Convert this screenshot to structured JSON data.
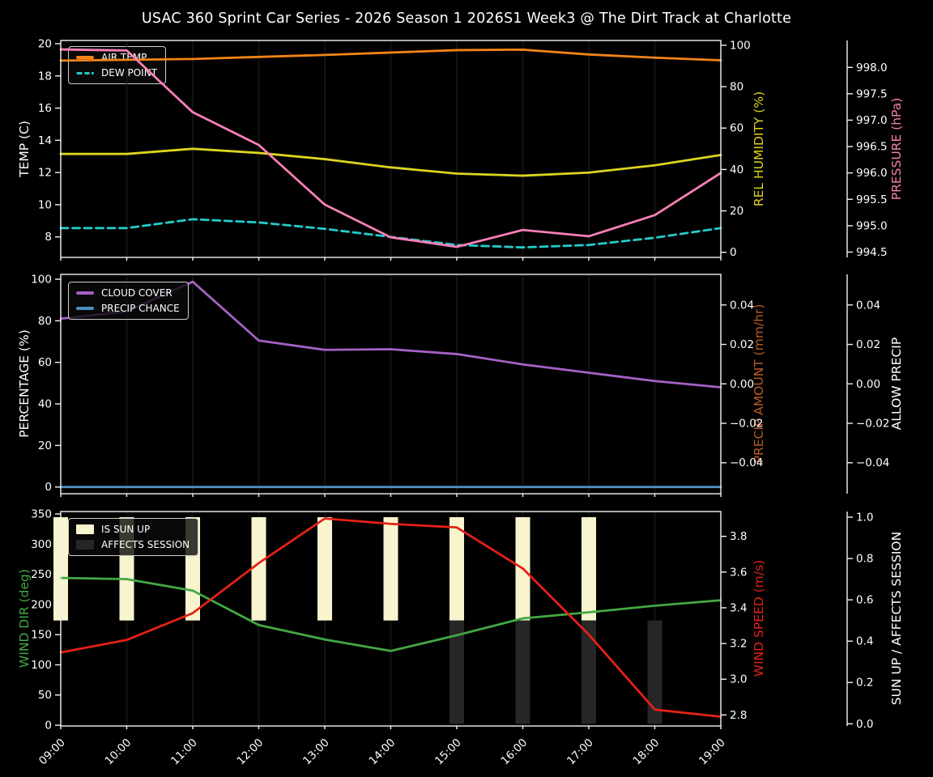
{
  "title": "USAC 360 Sprint Car Series - 2026 Season 1 2026S1 Week3 @ The Dirt Track at Charlotte",
  "colors": {
    "background": "#000000",
    "text": "#ffffff",
    "grid": "#1a1a1a",
    "spine": "#f2f2f2",
    "legend_border": "#cfcfcf"
  },
  "x_categories": [
    "09:00",
    "10:00",
    "11:00",
    "12:00",
    "13:00",
    "14:00",
    "15:00",
    "16:00",
    "17:00",
    "18:00",
    "19:00"
  ],
  "chart_data": [
    {
      "id": "temp-panel",
      "type": "line",
      "axes": {
        "left": {
          "label": "TEMP (C)",
          "color": "#ffffff",
          "ylim": [
            6.73,
            20.2
          ],
          "ticks": [
            8,
            10,
            12,
            14,
            16,
            18,
            20
          ],
          "tick_labels": [
            "8",
            "10",
            "12",
            "14",
            "16",
            "18",
            "20"
          ]
        },
        "right1": {
          "label": "REL HUMIDITY (%)",
          "color": "#ddd41f",
          "ylim": [
            -2.46,
            102.31
          ],
          "ticks": [
            0,
            20,
            40,
            60,
            80,
            100
          ],
          "tick_labels": [
            "0",
            "20",
            "40",
            "60",
            "80",
            "100"
          ]
        },
        "right2": {
          "label": "PRESSURE (hPa)",
          "color": "#f77fb7",
          "ylim": [
            994.4,
            998.51
          ],
          "ticks": [
            994.5,
            995.0,
            995.5,
            996.0,
            996.5,
            997.0,
            997.5,
            998.0
          ],
          "tick_labels": [
            "994.5",
            "995.0",
            "995.5",
            "996.0",
            "996.5",
            "997.0",
            "997.5",
            "998.0"
          ]
        }
      },
      "series": [
        {
          "name": "AIR TEMP",
          "color": "#f28418",
          "axis": "left",
          "style": "line",
          "values": [
            18.95,
            19.0,
            19.05,
            19.18,
            19.3,
            19.45,
            19.6,
            19.63,
            19.33,
            19.13,
            18.97
          ]
        },
        {
          "name": "DEW POINT",
          "color": "#24cbcb",
          "axis": "left",
          "style": "dashed",
          "values": [
            8.55,
            8.55,
            9.1,
            8.9,
            8.5,
            8.0,
            7.5,
            7.35,
            7.5,
            7.95,
            8.55
          ]
        },
        {
          "name": "REL HUMIDITY",
          "color": "#ddd41f",
          "axis": "right1",
          "style": "line",
          "values": [
            47.5,
            47.5,
            50,
            48,
            45,
            41,
            38,
            37,
            38.5,
            42,
            47
          ]
        },
        {
          "name": "PRESSURE",
          "color": "#f77fb7",
          "axis": "right2",
          "style": "line",
          "values": [
            998.34,
            998.32,
            997.15,
            996.53,
            995.4,
            994.78,
            994.6,
            994.92,
            994.8,
            995.2,
            996.0
          ]
        }
      ],
      "legend_entries": [
        0,
        1
      ]
    },
    {
      "id": "precip-panel",
      "type": "line",
      "axes": {
        "left": {
          "label": "PERCENTAGE (%)",
          "color": "#ffffff",
          "ylim": [
            -3.23,
            102.34
          ],
          "ticks": [
            0,
            20,
            40,
            60,
            80,
            100
          ],
          "tick_labels": [
            "0",
            "20",
            "40",
            "60",
            "80",
            "100"
          ]
        },
        "right1": {
          "label": "PRECIP AMOUNT (mm/hr)",
          "color": "#b85c28",
          "ylim": [
            -0.0557,
            0.0555
          ],
          "ticks": [
            -0.04,
            -0.02,
            0,
            0.02,
            0.04
          ],
          "tick_labels": [
            "−0.04",
            "−0.02",
            "0.00",
            "0.02",
            "0.04"
          ]
        },
        "right2": {
          "label": "ALLOW PRECIP",
          "color": "#ffffff",
          "ylim": [
            -0.0557,
            0.0555
          ],
          "ticks": [
            -0.04,
            -0.02,
            0,
            0.02,
            0.04
          ],
          "tick_labels": [
            "−0.04",
            "−0.02",
            "0.00",
            "0.02",
            "0.04"
          ]
        }
      },
      "series": [
        {
          "name": "CLOUD COVER",
          "color": "#a661c4",
          "axis": "left",
          "style": "line",
          "values": [
            81,
            84.5,
            98.8,
            70.5,
            66,
            66.3,
            64,
            59,
            55,
            51,
            48
          ]
        },
        {
          "name": "PRECIP CHANCE",
          "color": "#4a8fc2",
          "axis": "left",
          "style": "line",
          "values": [
            0,
            0,
            0,
            0,
            0,
            0,
            0,
            0,
            0,
            0,
            0
          ]
        }
      ],
      "legend_entries": [
        0,
        1
      ]
    },
    {
      "id": "wind-panel",
      "type": "line",
      "axes": {
        "left": {
          "label": "WIND DIR (deg)",
          "color": "#43a843",
          "ylim": [
            -1.34,
            354.0
          ],
          "ticks": [
            0,
            50,
            100,
            150,
            200,
            250,
            300,
            350
          ],
          "tick_labels": [
            "0",
            "50",
            "100",
            "150",
            "200",
            "250",
            "300",
            "350"
          ]
        },
        "right1": {
          "label": "WIND SPEED (m/s)",
          "color": "#e42117",
          "ylim": [
            2.738,
            3.939
          ],
          "ticks": [
            2.8,
            3.0,
            3.2,
            3.4,
            3.6,
            3.8
          ],
          "tick_labels": [
            "2.8",
            "3.0",
            "3.2",
            "3.4",
            "3.6",
            "3.8"
          ]
        },
        "right2": {
          "label": "SUN UP / AFFECTS SESSION",
          "color": "#ffffff",
          "ylim": [
            -0.0106,
            1.0274
          ],
          "ticks": [
            0.0,
            0.2,
            0.4,
            0.6,
            0.8,
            1.0
          ],
          "tick_labels": [
            "0.0",
            "0.2",
            "0.4",
            "0.6",
            "0.8",
            "1.0"
          ]
        }
      },
      "series": [
        {
          "name": "IS SUN UP",
          "color": "#f7f4ce",
          "axis": "right2",
          "style": "bars-upper",
          "values": [
            1,
            1,
            1,
            1,
            1,
            1,
            1,
            1,
            1,
            0,
            0
          ]
        },
        {
          "name": "AFFECTS SESSION",
          "color": "#262626",
          "axis": "right2",
          "style": "bars-lower",
          "values": [
            0,
            0,
            0,
            0,
            0,
            0,
            1,
            1,
            1,
            1,
            0
          ]
        },
        {
          "name": "WIND DIR",
          "color": "#43a843",
          "axis": "left",
          "style": "line",
          "values": [
            244,
            242,
            223,
            166,
            142,
            123,
            149,
            177,
            187,
            198,
            207
          ]
        },
        {
          "name": "WIND SPEED",
          "color": "#e42117",
          "axis": "right1",
          "style": "line",
          "values": [
            3.15,
            3.22,
            3.37,
            3.65,
            3.9,
            3.87,
            3.85,
            3.62,
            3.25,
            2.83,
            2.79
          ]
        }
      ],
      "legend_entries": [
        0,
        1
      ]
    }
  ]
}
